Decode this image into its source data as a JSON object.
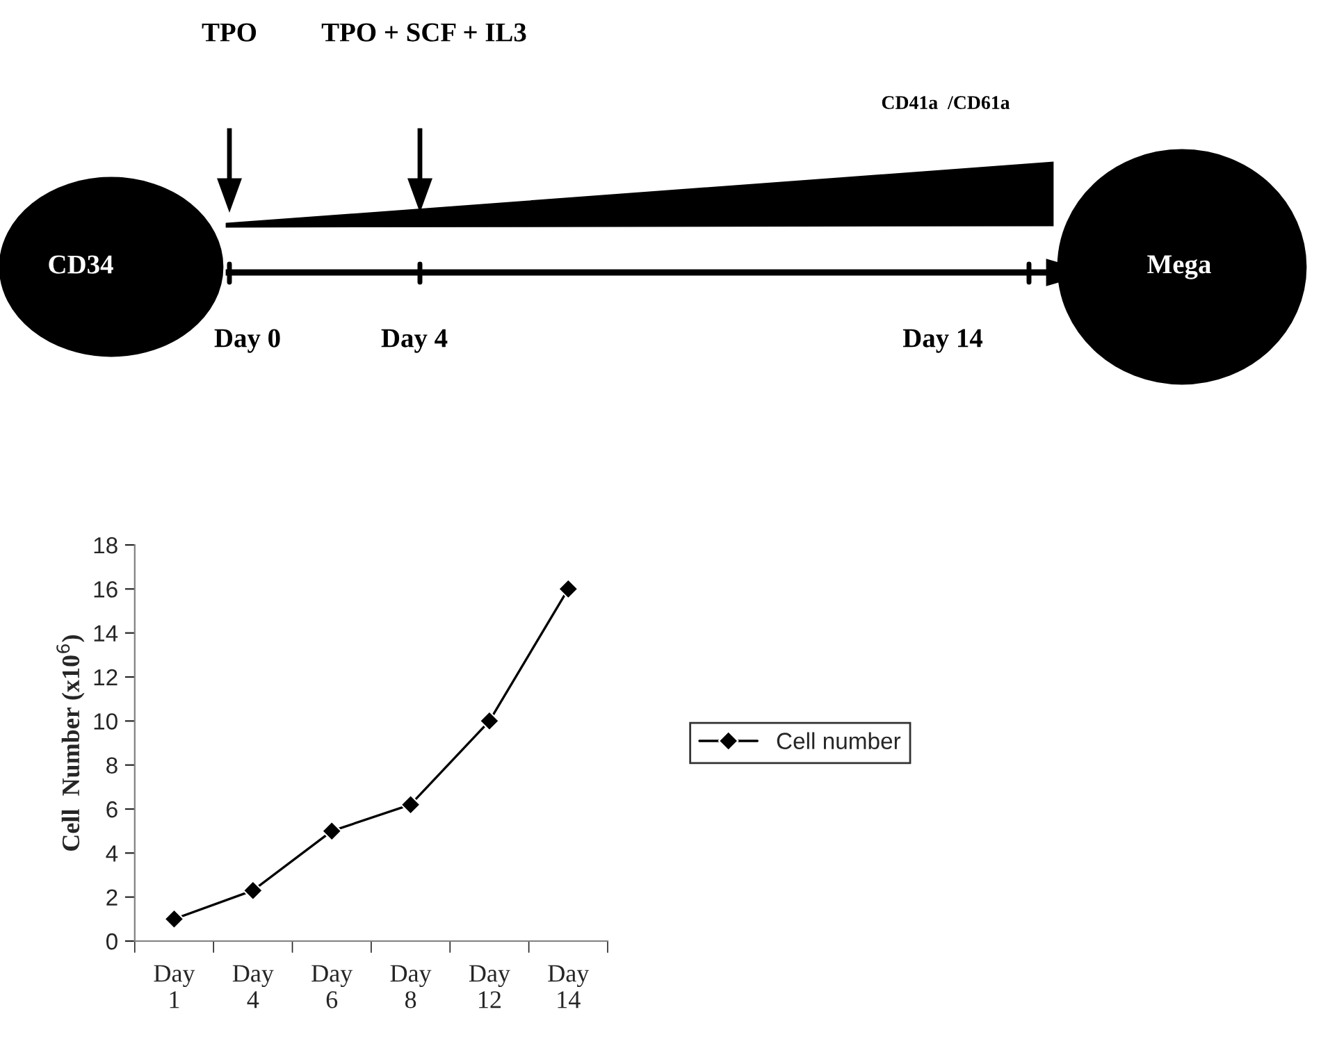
{
  "chart_data": [
    {
      "type": "other",
      "annotations": [
        "TPO",
        "TPO + SCF + IL3",
        "CD41a  /CD61a",
        "CD34",
        "Mega",
        "Day 0",
        "Day 4",
        "Day 14"
      ]
    },
    {
      "type": "line",
      "categories": [
        "Day\n1",
        "Day\n4",
        "Day\n6",
        "Day\n8",
        "Day\n12",
        "Day\n14"
      ],
      "series": [
        {
          "name": "Cell number",
          "color": "#000000",
          "values": [
            1,
            2.3,
            5,
            6.2,
            10,
            16
          ]
        }
      ],
      "ylabel": "Cell  Number (x10$^{6}$)",
      "ylim": [
        0,
        18
      ],
      "yticks": [
        0,
        2,
        4,
        6,
        8,
        10,
        12,
        14,
        16,
        18
      ],
      "marker": "diamond",
      "line_style": "solid",
      "grid": false,
      "legend": "right"
    }
  ]
}
